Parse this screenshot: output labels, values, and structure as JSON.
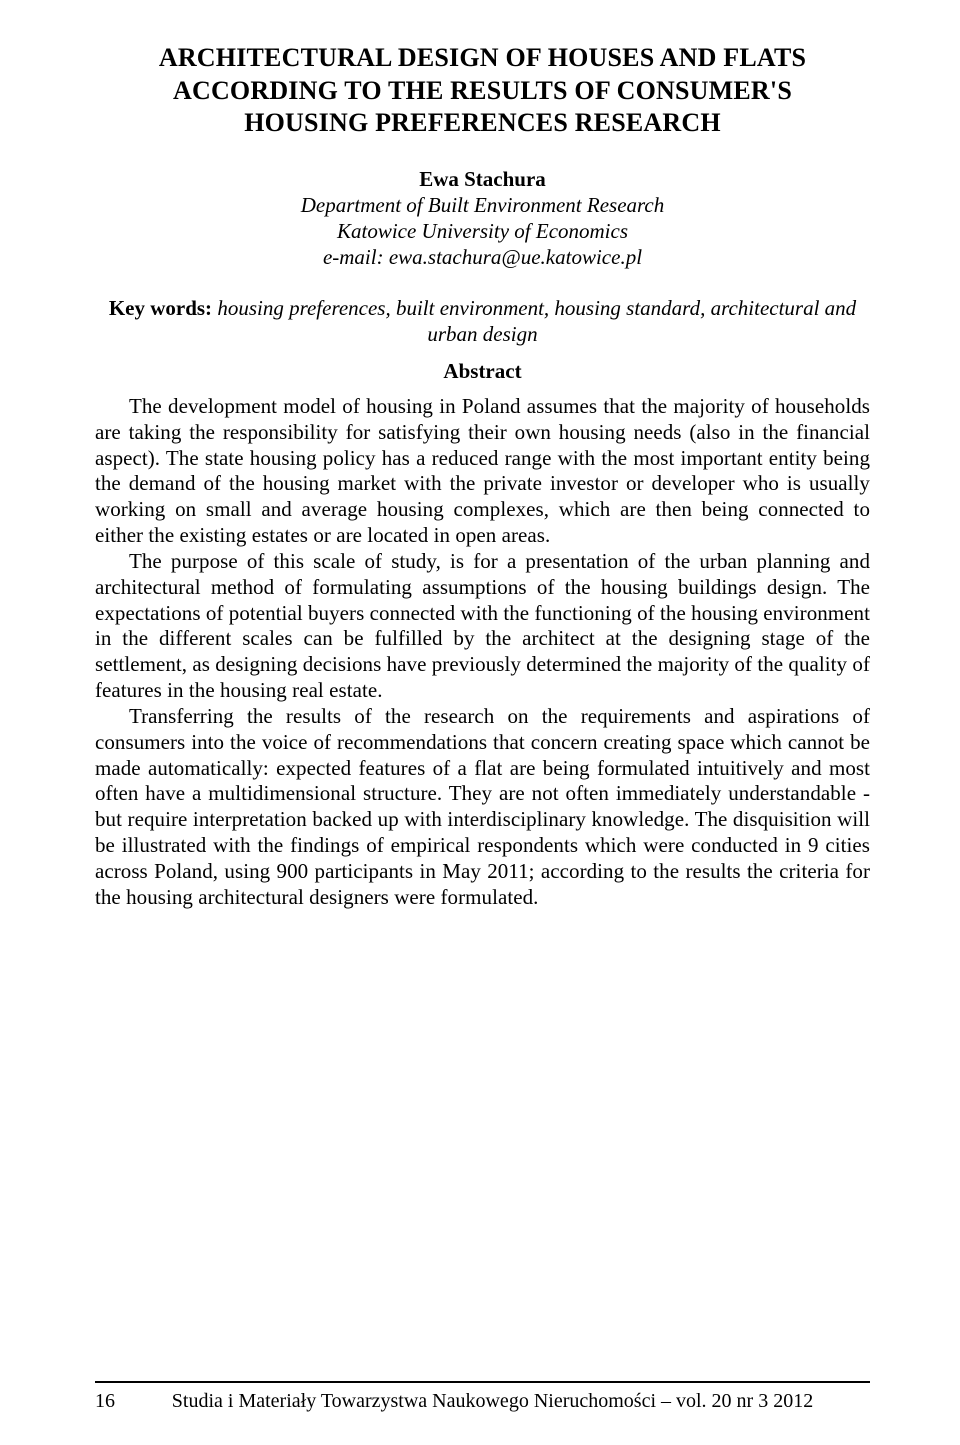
{
  "title_lines": [
    "ARCHITECTURAL DESIGN OF HOUSES AND FLATS",
    "ACCORDING TO THE RESULTS OF CONSUMER'S",
    "HOUSING PREFERENCES RESEARCH"
  ],
  "author": "Ewa Stachura",
  "affiliation_lines": [
    "Department of Built Environment Research",
    "Katowice University of Economics",
    "e-mail: ewa.stachura@ue.katowice.pl"
  ],
  "keywords_label": "Key words:",
  "keywords_text": "housing preferences, built environment, housing standard, architectural and urban design",
  "abstract_label": "Abstract",
  "paragraphs": [
    "The development model of housing in Poland assumes that the majority of households are taking the responsibility for satisfying their own housing needs (also in the financial aspect). The state housing policy has a reduced range with the most important entity being the demand of the housing market with the private investor or developer who is usually working on small and average housing complexes, which are then being connected to either the existing estates or are located in open areas.",
    "The purpose of this scale of study, is for a presentation of the urban planning and architectural method of formulating assumptions of the housing buildings design. The expectations of potential buyers connected with the functioning of the housing environment in the different scales can be fulfilled by the architect at the designing stage of the settlement, as designing decisions have previously determined the majority of the quality of features in the housing real estate.",
    "Transferring the results of the research on the requirements and aspirations of consumers into the voice of recommendations that concern creating space which cannot be made automatically: expected features of a flat are being formulated intuitively and most often have a multidimensional structure. They are not often immediately understandable - but require interpretation backed up with interdisciplinary knowledge. The disquisition will be illustrated with the findings of empirical respondents which were conducted in 9 cities across Poland, using 900 participants in May 2011; according to the results the criteria for the housing architectural designers were formulated."
  ],
  "footer_page": "16",
  "footer_text": "Studia i Materiały Towarzystwa Naukowego Nieruchomości – vol. 20 nr 3 2012"
}
